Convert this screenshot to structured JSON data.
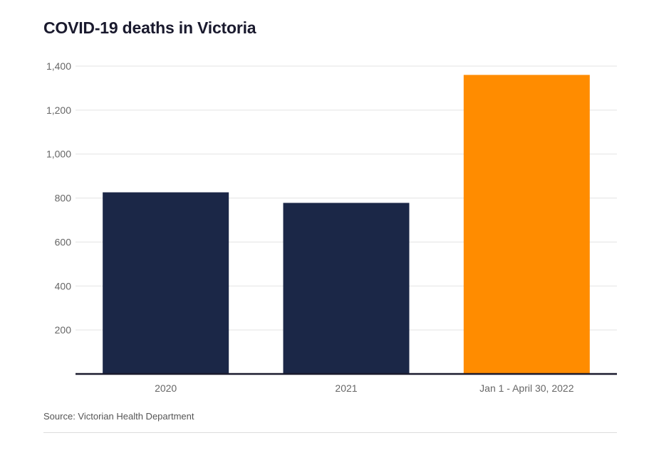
{
  "chart_data": {
    "type": "bar",
    "title": "COVID-19 deaths in Victoria",
    "categories": [
      "2020",
      "2021",
      "Jan 1 - April 30, 2022"
    ],
    "values": [
      826,
      778,
      1360
    ],
    "colors": [
      "#1b2747",
      "#1b2747",
      "#ff8c00"
    ],
    "ylim": [
      0,
      1400
    ],
    "yticks": [
      200,
      400,
      600,
      800,
      1000,
      1200,
      1400
    ],
    "ytick_labels": [
      "200",
      "400",
      "600",
      "800",
      "1,000",
      "1,200",
      "1,400"
    ],
    "grid": true,
    "xlabel": "",
    "ylabel": ""
  },
  "source": "Source: Victorian Health Department"
}
